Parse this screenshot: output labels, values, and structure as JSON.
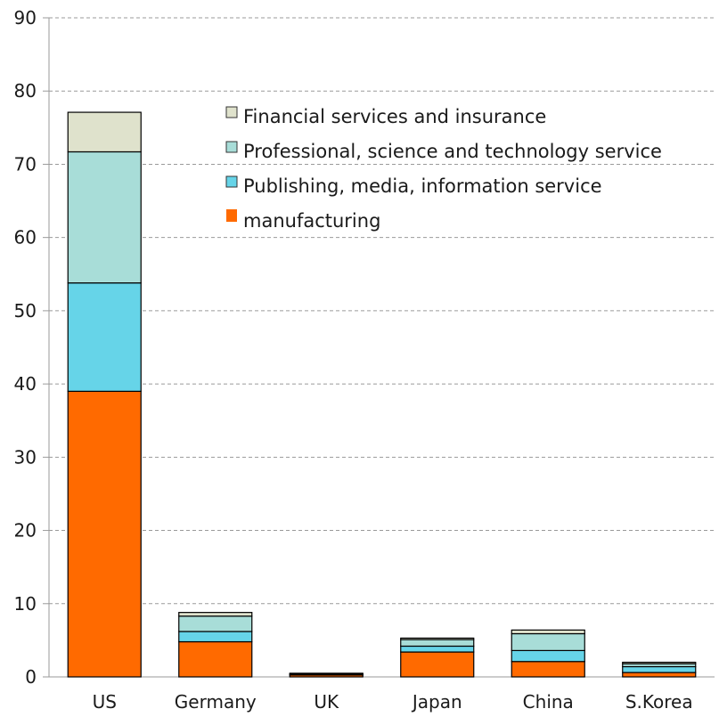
{
  "chart_data": {
    "type": "bar",
    "stacked": true,
    "categories": [
      "US",
      "Germany",
      "UK",
      "Japan",
      "China",
      "S.Korea"
    ],
    "series": [
      {
        "name": "manufacturing",
        "color": "#ff6a00",
        "values": [
          39.0,
          4.8,
          0.3,
          3.4,
          2.1,
          0.6
        ]
      },
      {
        "name": "Publishing, media, information service",
        "color": "#66d4e8",
        "values": [
          14.8,
          1.4,
          0.05,
          0.8,
          1.5,
          0.8
        ]
      },
      {
        "name": "Professional, science and technology service",
        "color": "#a8ddd8",
        "values": [
          17.9,
          2.1,
          0.05,
          0.9,
          2.3,
          0.4
        ]
      },
      {
        "name": "Financial services and insurance",
        "color": "#dfe2cc",
        "values": [
          5.4,
          0.5,
          0.1,
          0.2,
          0.5,
          0.2
        ]
      }
    ],
    "ylim": [
      0,
      90
    ],
    "yticks": [
      "0",
      "10",
      "20",
      "30",
      "40",
      "50",
      "60",
      "70",
      "80",
      "90"
    ],
    "grid": true,
    "legend_position": "top-right",
    "legend_order": [
      "Financial services and insurance",
      "Professional, science and technology service",
      "Publishing, media, information service",
      "manufacturing"
    ],
    "title": "",
    "xlabel": "",
    "ylabel": ""
  }
}
